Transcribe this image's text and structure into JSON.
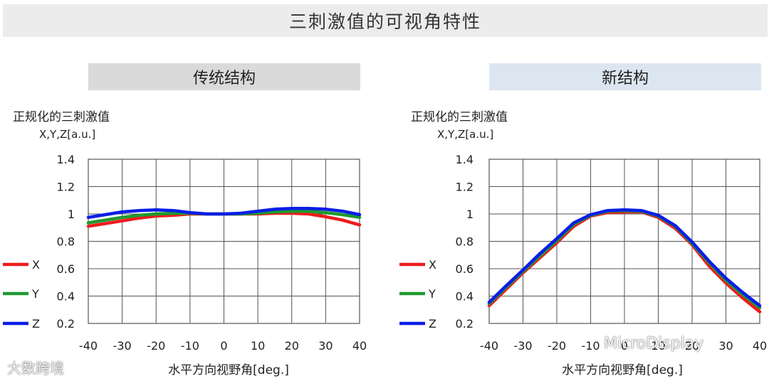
{
  "page_title": "三刺激值的可视角特性",
  "watermarks": {
    "left": "大数跨境",
    "right": "MicroDisplay"
  },
  "chart_data": [
    {
      "type": "line",
      "panel_title": "传统结构",
      "ylabel_line1": "正规化的三刺激值",
      "ylabel_line2": "X,Y,Z[a.u.]",
      "xlabel": "水平方向视野角[deg.]",
      "xlim": [
        -40,
        40
      ],
      "ylim": [
        0.2,
        1.4
      ],
      "xticks": [
        -40,
        -30,
        -20,
        -10,
        0,
        10,
        20,
        30,
        40
      ],
      "yticks": [
        0.2,
        0.4,
        0.6,
        0.8,
        1,
        1.2,
        1.4
      ],
      "xtick_labels": [
        "-40",
        "-30",
        "-20",
        "-10",
        "0",
        "10",
        "20",
        "30",
        "40"
      ],
      "ytick_labels": [
        "0.2",
        "0.4",
        "0.6",
        "0.8",
        "1",
        "1.2",
        "1.4"
      ],
      "grid": true,
      "legend_position": "left",
      "x": [
        -40,
        -35,
        -30,
        -25,
        -20,
        -15,
        -10,
        -5,
        0,
        5,
        10,
        15,
        20,
        25,
        30,
        35,
        40
      ],
      "series": [
        {
          "name": "X",
          "color": "#ee1c1c",
          "values": [
            0.91,
            0.93,
            0.95,
            0.97,
            0.985,
            0.99,
            1.0,
            1.0,
            1.0,
            1.0,
            1.0,
            1.005,
            1.005,
            1.0,
            0.98,
            0.955,
            0.92
          ]
        },
        {
          "name": "Y",
          "color": "#1e9a30",
          "values": [
            0.935,
            0.955,
            0.975,
            0.99,
            1.0,
            1.005,
            1.005,
            1.0,
            1.0,
            1.0,
            1.005,
            1.015,
            1.02,
            1.02,
            1.01,
            0.995,
            0.975
          ]
        },
        {
          "name": "Z",
          "color": "#0a1ee6",
          "values": [
            0.975,
            0.995,
            1.015,
            1.025,
            1.03,
            1.025,
            1.01,
            1.0,
            1.0,
            1.005,
            1.02,
            1.035,
            1.04,
            1.04,
            1.035,
            1.02,
            0.995
          ]
        }
      ]
    },
    {
      "type": "line",
      "panel_title": "新结构",
      "ylabel_line1": "正规化的三刺激值",
      "ylabel_line2": "X,Y,Z[a.u.]",
      "xlabel": "水平方向视野角[deg.]",
      "xlim": [
        -40,
        40
      ],
      "ylim": [
        0.2,
        1.4
      ],
      "xticks": [
        -40,
        -30,
        -20,
        -10,
        0,
        10,
        20,
        30,
        40
      ],
      "yticks": [
        0.2,
        0.4,
        0.6,
        0.8,
        1,
        1.2,
        1.4
      ],
      "xtick_labels": [
        "-40",
        "-30",
        "-20",
        "-10",
        "0",
        "10",
        "20",
        "30",
        "40"
      ],
      "ytick_labels": [
        "0.2",
        "0.4",
        "0.6",
        "0.8",
        "1",
        "1.2",
        "1.4"
      ],
      "grid": true,
      "legend_position": "left",
      "x": [
        -40,
        -35,
        -30,
        -25,
        -20,
        -15,
        -10,
        -5,
        0,
        5,
        10,
        15,
        20,
        25,
        30,
        35,
        40
      ],
      "series": [
        {
          "name": "X",
          "color": "#ee1c1c",
          "values": [
            0.33,
            0.45,
            0.57,
            0.68,
            0.79,
            0.91,
            0.985,
            1.01,
            1.015,
            1.015,
            0.975,
            0.895,
            0.775,
            0.62,
            0.495,
            0.385,
            0.285
          ]
        },
        {
          "name": "Y",
          "color": "#1e9a30",
          "values": [
            0.345,
            0.465,
            0.58,
            0.695,
            0.805,
            0.925,
            0.99,
            1.02,
            1.025,
            1.02,
            0.985,
            0.91,
            0.785,
            0.645,
            0.515,
            0.41,
            0.315
          ]
        },
        {
          "name": "Z",
          "color": "#0a1ee6",
          "values": [
            0.355,
            0.475,
            0.59,
            0.71,
            0.82,
            0.935,
            0.995,
            1.025,
            1.03,
            1.025,
            0.99,
            0.915,
            0.795,
            0.655,
            0.53,
            0.425,
            0.33
          ]
        }
      ]
    }
  ]
}
